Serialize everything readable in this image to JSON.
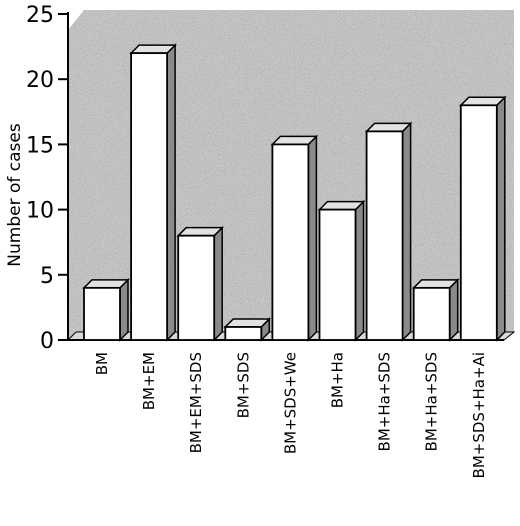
{
  "chart_data": {
    "type": "bar",
    "title": "",
    "xlabel": "",
    "ylabel": "Number of cases",
    "ylim": [
      0,
      25
    ],
    "yticks": [
      0,
      5,
      10,
      15,
      20,
      25
    ],
    "grid": false,
    "style": "3d-bars",
    "colors": {
      "wall": "#c4c4c4",
      "bar_face": "#ffffff",
      "bar_side": "#8a8a8a",
      "bar_top": "#e2e2e2"
    },
    "categories": [
      "BM",
      "BM+EM",
      "BM+EM+SDS",
      "BM+SDS",
      "BM+SDS+We",
      "BM+Ha",
      "BM+Ha+SDS",
      "BM+Ha+SDS",
      "BM+SDS+Ha+Ai"
    ],
    "values": [
      4,
      22,
      8,
      1,
      15,
      10,
      16,
      4,
      18
    ]
  }
}
